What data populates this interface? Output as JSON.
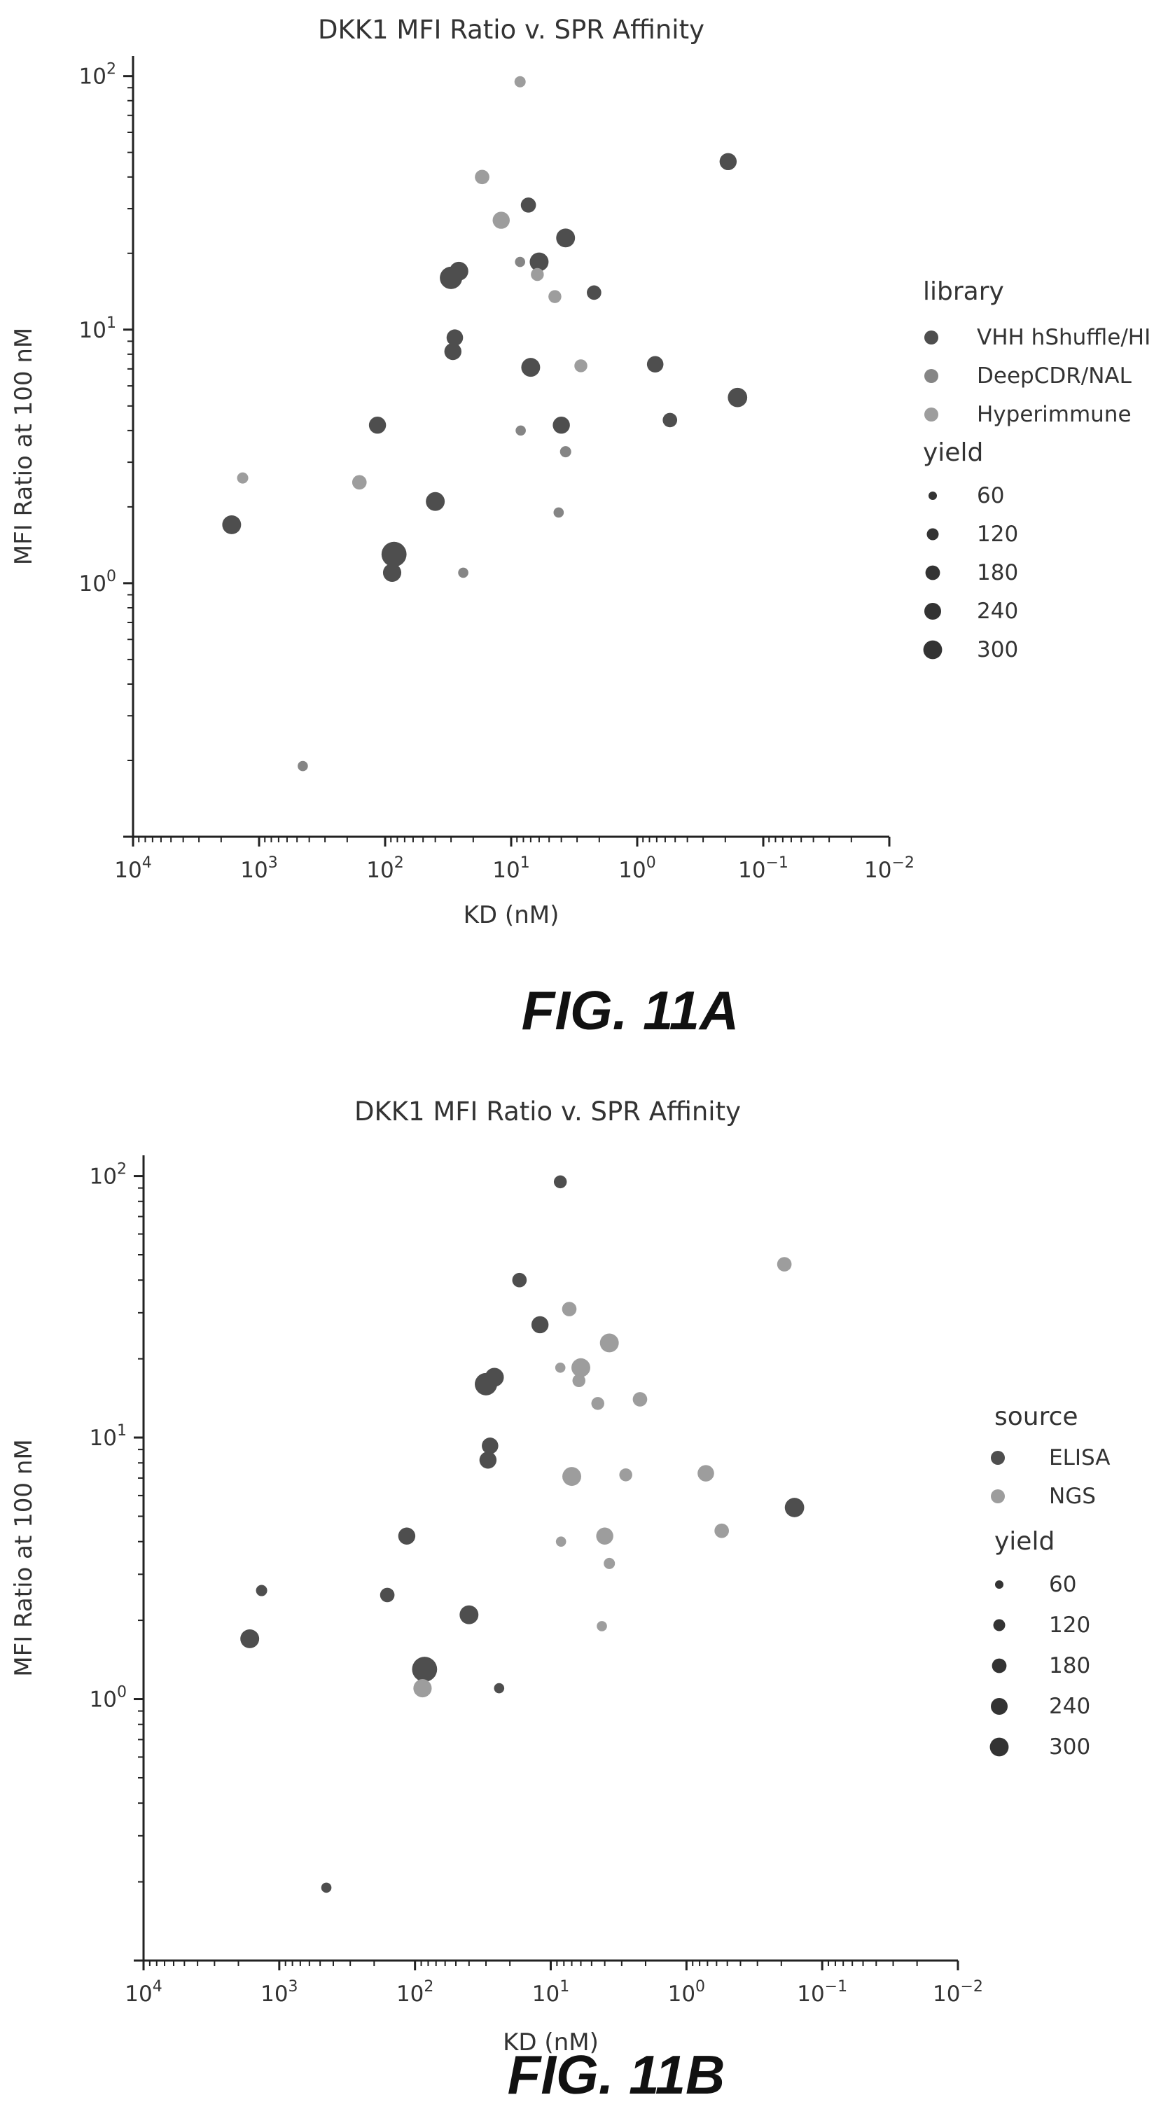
{
  "colors": {
    "dark": "#4e4e4e",
    "medium": "#858585",
    "light": "#9d9d9d"
  },
  "chart_data": [
    {
      "type": "scatter",
      "title": "DKK1 MFI Ratio v. SPR Affinity",
      "xlabel": "KD (nM)",
      "ylabel": "MFI Ratio at 100 nM",
      "xscale": "log",
      "yscale": "log",
      "xaxis_direction": "reversed",
      "xlim": [
        10000,
        0.01
      ],
      "ylim": [
        0.1,
        120
      ],
      "xticks": [
        {
          "base": "10",
          "exp": "4"
        },
        {
          "base": "10",
          "exp": "3"
        },
        {
          "base": "10",
          "exp": "2"
        },
        {
          "base": "10",
          "exp": "1"
        },
        {
          "base": "10",
          "exp": "0"
        },
        {
          "base": "10",
          "exp": "−1"
        },
        {
          "base": "10",
          "exp": "−2"
        }
      ],
      "yticks": [
        {
          "base": "10",
          "exp": "0"
        },
        {
          "base": "10",
          "exp": "1"
        },
        {
          "base": "10",
          "exp": "2"
        }
      ],
      "legend_placement": "right",
      "caption": "FIG. 11A",
      "hue_title": "library",
      "hue_entries": [
        {
          "label": "VHH hShuffle/HI",
          "color": "#4e4e4e"
        },
        {
          "label": "DeepCDR/NAL",
          "color": "#858585"
        },
        {
          "label": "Hyperimmune",
          "color": "#9d9d9d"
        }
      ],
      "size_title": "yield",
      "size_entries": [
        {
          "label": "60",
          "yield": 60
        },
        {
          "label": "120",
          "yield": 120
        },
        {
          "label": "180",
          "yield": 180
        },
        {
          "label": "240",
          "yield": 240
        },
        {
          "label": "300",
          "yield": 300
        }
      ],
      "points": [
        {
          "x": 8.5,
          "y": 95,
          "yield": 60,
          "group": "Hyperimmune"
        },
        {
          "x": 0.19,
          "y": 46,
          "yield": 140,
          "group": "VHH hShuffle/HI"
        },
        {
          "x": 17,
          "y": 40,
          "yield": 100,
          "group": "Hyperimmune"
        },
        {
          "x": 7.3,
          "y": 31,
          "yield": 110,
          "group": "VHH hShuffle/HI"
        },
        {
          "x": 12,
          "y": 27,
          "yield": 140,
          "group": "Hyperimmune"
        },
        {
          "x": 3.7,
          "y": 23,
          "yield": 170,
          "group": "VHH hShuffle/HI"
        },
        {
          "x": 6,
          "y": 18.5,
          "yield": 170,
          "group": "VHH hShuffle/HI"
        },
        {
          "x": 8.5,
          "y": 18.5,
          "yield": 50,
          "group": "DeepCDR/NAL"
        },
        {
          "x": 26,
          "y": 17,
          "yield": 170,
          "group": "VHH hShuffle/HI"
        },
        {
          "x": 6.2,
          "y": 16.5,
          "yield": 80,
          "group": "Hyperimmune"
        },
        {
          "x": 30,
          "y": 16,
          "yield": 240,
          "group": "VHH hShuffle/HI"
        },
        {
          "x": 2.2,
          "y": 14,
          "yield": 100,
          "group": "VHH hShuffle/HI"
        },
        {
          "x": 4.5,
          "y": 13.5,
          "yield": 80,
          "group": "Hyperimmune"
        },
        {
          "x": 28,
          "y": 9.3,
          "yield": 130,
          "group": "VHH hShuffle/HI"
        },
        {
          "x": 29,
          "y": 8.2,
          "yield": 140,
          "group": "VHH hShuffle/HI"
        },
        {
          "x": 0.72,
          "y": 7.3,
          "yield": 130,
          "group": "VHH hShuffle/HI"
        },
        {
          "x": 2.8,
          "y": 7.2,
          "yield": 80,
          "group": "Hyperimmune"
        },
        {
          "x": 7,
          "y": 7.1,
          "yield": 170,
          "group": "VHH hShuffle/HI"
        },
        {
          "x": 0.16,
          "y": 5.4,
          "yield": 180,
          "group": "VHH hShuffle/HI"
        },
        {
          "x": 0.55,
          "y": 4.4,
          "yield": 100,
          "group": "VHH hShuffle/HI"
        },
        {
          "x": 4,
          "y": 4.2,
          "yield": 140,
          "group": "VHH hShuffle/HI"
        },
        {
          "x": 115,
          "y": 4.2,
          "yield": 140,
          "group": "VHH hShuffle/HI"
        },
        {
          "x": 8.4,
          "y": 4,
          "yield": 50,
          "group": "DeepCDR/NAL"
        },
        {
          "x": 3.7,
          "y": 3.3,
          "yield": 60,
          "group": "DeepCDR/NAL"
        },
        {
          "x": 1350,
          "y": 2.6,
          "yield": 60,
          "group": "Hyperimmune"
        },
        {
          "x": 160,
          "y": 2.5,
          "yield": 100,
          "group": "Hyperimmune"
        },
        {
          "x": 40,
          "y": 2.1,
          "yield": 170,
          "group": "VHH hShuffle/HI"
        },
        {
          "x": 4.2,
          "y": 1.9,
          "yield": 50,
          "group": "DeepCDR/NAL"
        },
        {
          "x": 1650,
          "y": 1.7,
          "yield": 170,
          "group": "VHH hShuffle/HI"
        },
        {
          "x": 85,
          "y": 1.3,
          "yield": 300,
          "group": "VHH hShuffle/HI"
        },
        {
          "x": 88,
          "y": 1.1,
          "yield": 160,
          "group": "VHH hShuffle/HI"
        },
        {
          "x": 24,
          "y": 1.1,
          "yield": 50,
          "group": "DeepCDR/NAL"
        },
        {
          "x": 450,
          "y": 0.19,
          "yield": 50,
          "group": "DeepCDR/NAL"
        }
      ]
    },
    {
      "type": "scatter",
      "title": "DKK1 MFI Ratio v. SPR Affinity",
      "xlabel": "KD (nM)",
      "ylabel": "MFI Ratio at 100 nM",
      "xscale": "log",
      "yscale": "log",
      "xaxis_direction": "reversed",
      "xlim": [
        10000,
        0.01
      ],
      "ylim": [
        0.1,
        120
      ],
      "xticks": [
        {
          "base": "10",
          "exp": "4"
        },
        {
          "base": "10",
          "exp": "3"
        },
        {
          "base": "10",
          "exp": "2"
        },
        {
          "base": "10",
          "exp": "1"
        },
        {
          "base": "10",
          "exp": "0"
        },
        {
          "base": "10",
          "exp": "−1"
        },
        {
          "base": "10",
          "exp": "−2"
        }
      ],
      "yticks": [
        {
          "base": "10",
          "exp": "0"
        },
        {
          "base": "10",
          "exp": "1"
        },
        {
          "base": "10",
          "exp": "2"
        }
      ],
      "legend_placement": "right",
      "caption": "FIG. 11B",
      "hue_title": "source",
      "hue_entries": [
        {
          "label": "ELISA",
          "color": "#4e4e4e"
        },
        {
          "label": "NGS",
          "color": "#9d9d9d"
        }
      ],
      "size_title": "yield",
      "size_entries": [
        {
          "label": "60",
          "yield": 60
        },
        {
          "label": "120",
          "yield": 120
        },
        {
          "label": "180",
          "yield": 180
        },
        {
          "label": "240",
          "yield": 240
        },
        {
          "label": "300",
          "yield": 300
        }
      ],
      "points": [
        {
          "x": 8.5,
          "y": 95,
          "yield": 80,
          "group": "ELISA"
        },
        {
          "x": 0.19,
          "y": 46,
          "yield": 100,
          "group": "NGS"
        },
        {
          "x": 17,
          "y": 40,
          "yield": 100,
          "group": "ELISA"
        },
        {
          "x": 7.3,
          "y": 31,
          "yield": 100,
          "group": "NGS"
        },
        {
          "x": 12,
          "y": 27,
          "yield": 140,
          "group": "ELISA"
        },
        {
          "x": 3.7,
          "y": 23,
          "yield": 170,
          "group": "NGS"
        },
        {
          "x": 6,
          "y": 18.5,
          "yield": 170,
          "group": "NGS"
        },
        {
          "x": 8.5,
          "y": 18.5,
          "yield": 50,
          "group": "NGS"
        },
        {
          "x": 26,
          "y": 17,
          "yield": 170,
          "group": "ELISA"
        },
        {
          "x": 6.2,
          "y": 16.5,
          "yield": 80,
          "group": "NGS"
        },
        {
          "x": 30,
          "y": 16,
          "yield": 240,
          "group": "ELISA"
        },
        {
          "x": 2.2,
          "y": 14,
          "yield": 100,
          "group": "NGS"
        },
        {
          "x": 4.5,
          "y": 13.5,
          "yield": 80,
          "group": "NGS"
        },
        {
          "x": 28,
          "y": 9.3,
          "yield": 130,
          "group": "ELISA"
        },
        {
          "x": 29,
          "y": 8.2,
          "yield": 140,
          "group": "ELISA"
        },
        {
          "x": 0.72,
          "y": 7.3,
          "yield": 130,
          "group": "NGS"
        },
        {
          "x": 2.8,
          "y": 7.2,
          "yield": 80,
          "group": "NGS"
        },
        {
          "x": 7,
          "y": 7.1,
          "yield": 170,
          "group": "NGS"
        },
        {
          "x": 0.16,
          "y": 5.4,
          "yield": 180,
          "group": "ELISA"
        },
        {
          "x": 0.55,
          "y": 4.4,
          "yield": 100,
          "group": "NGS"
        },
        {
          "x": 4,
          "y": 4.2,
          "yield": 140,
          "group": "NGS"
        },
        {
          "x": 115,
          "y": 4.2,
          "yield": 140,
          "group": "ELISA"
        },
        {
          "x": 8.4,
          "y": 4,
          "yield": 50,
          "group": "NGS"
        },
        {
          "x": 3.7,
          "y": 3.3,
          "yield": 60,
          "group": "NGS"
        },
        {
          "x": 1350,
          "y": 2.6,
          "yield": 60,
          "group": "ELISA"
        },
        {
          "x": 160,
          "y": 2.5,
          "yield": 100,
          "group": "ELISA"
        },
        {
          "x": 40,
          "y": 2.1,
          "yield": 170,
          "group": "ELISA"
        },
        {
          "x": 4.2,
          "y": 1.9,
          "yield": 50,
          "group": "NGS"
        },
        {
          "x": 1650,
          "y": 1.7,
          "yield": 170,
          "group": "ELISA"
        },
        {
          "x": 85,
          "y": 1.3,
          "yield": 300,
          "group": "ELISA"
        },
        {
          "x": 88,
          "y": 1.1,
          "yield": 160,
          "group": "NGS"
        },
        {
          "x": 24,
          "y": 1.1,
          "yield": 50,
          "group": "ELISA"
        },
        {
          "x": 450,
          "y": 0.19,
          "yield": 50,
          "group": "ELISA"
        }
      ]
    }
  ]
}
